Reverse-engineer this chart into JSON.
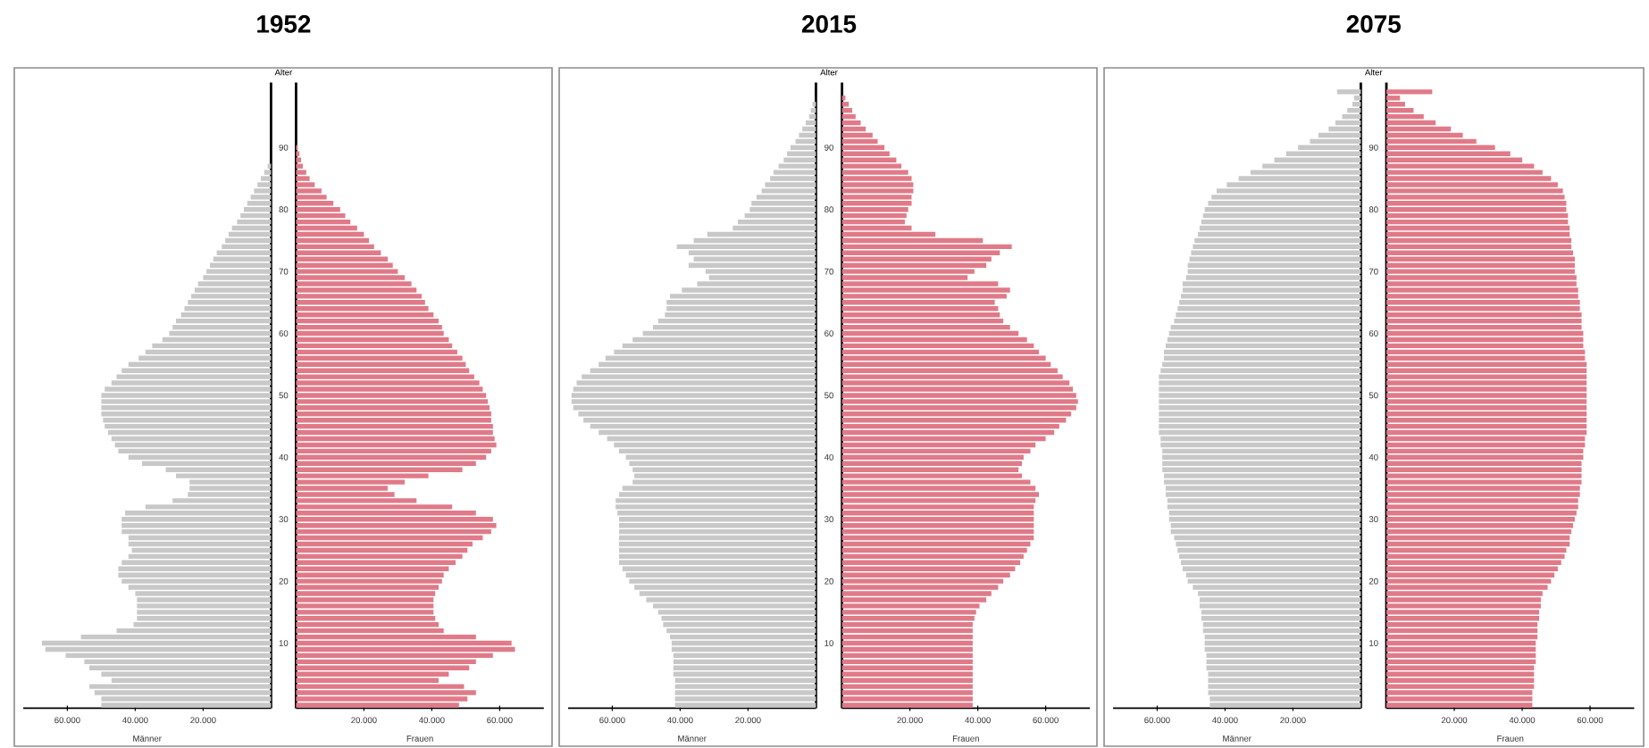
{
  "chart_data": [
    {
      "type": "bar",
      "orientation": "horizontal",
      "title": "1952",
      "ylabel": "Alter",
      "xlabel": "Männer",
      "categories": [
        "90",
        null,
        null,
        null,
        null,
        null,
        null,
        null,
        null,
        null,
        "80",
        null,
        null,
        null,
        null,
        null,
        null,
        null,
        null,
        null,
        "70",
        null,
        null,
        null,
        null,
        null,
        null,
        null,
        null,
        null,
        "60",
        null,
        null,
        null,
        null,
        null,
        null,
        null,
        null,
        null,
        "50",
        null,
        null,
        null,
        null,
        null,
        null,
        null,
        null,
        null,
        "40",
        null,
        null,
        null,
        null,
        null,
        null,
        null,
        null,
        null,
        "30",
        null,
        null,
        null,
        null,
        null,
        null,
        null,
        null,
        null,
        "20",
        null,
        null,
        null,
        null,
        null,
        null,
        null,
        null,
        null,
        "10",
        null,
        null,
        null,
        null,
        null,
        null,
        null,
        null,
        null,
        null
      ],
      "series": [
        {
          "color": "#c8c8c8",
          "values": [
            null,
            null,
            null,
            1000,
            2000,
            3000,
            4000,
            5000,
            6000,
            7000,
            8000,
            9000,
            10000,
            11500,
            12500,
            13500,
            14500,
            16000,
            17000,
            18000,
            19000,
            20000,
            21500,
            22500,
            23500,
            24500,
            25500,
            26500,
            28000,
            29000,
            30000,
            32000,
            35000,
            37000,
            39000,
            42000,
            44000,
            45500,
            47000,
            49000,
            50000,
            50000,
            50000,
            50000,
            49500,
            49000,
            48000,
            47000,
            46000,
            45000,
            42000,
            38000,
            31000,
            28000,
            24000,
            24000,
            24500,
            29000,
            37000,
            43000,
            44000,
            44000,
            44000,
            42000,
            42000,
            41000,
            42000,
            44000,
            45000,
            45000,
            44000,
            42000,
            40000,
            39500,
            39500,
            39500,
            39500,
            40500,
            45500,
            56000,
            67500,
            66500,
            60500,
            55000,
            53500,
            50000,
            47000,
            53500,
            52000,
            50000,
            50000
          ]
        }
      ],
      "xlim": [
        73000,
        0
      ],
      "xticks": [
        {
          "value": 60000,
          "label": "60.000"
        },
        {
          "value": 40000,
          "label": "40.000"
        },
        {
          "value": 20000,
          "label": "20.000"
        }
      ]
    },
    {
      "type": "bar",
      "orientation": "horizontal",
      "xlabel": "Frauen",
      "tick_labels": "x",
      "categories": [
        "90",
        null,
        null,
        null,
        null,
        null,
        null,
        null,
        null,
        null,
        "80",
        null,
        null,
        null,
        null,
        null,
        null,
        null,
        null,
        null,
        "70",
        null,
        null,
        null,
        null,
        null,
        null,
        null,
        null,
        null,
        "60",
        null,
        null,
        null,
        null,
        null,
        null,
        null,
        null,
        null,
        "50",
        null,
        null,
        null,
        null,
        null,
        null,
        null,
        null,
        null,
        "40",
        null,
        null,
        null,
        null,
        null,
        null,
        null,
        null,
        null,
        "30",
        null,
        null,
        null,
        null,
        null,
        null,
        null,
        null,
        null,
        "20",
        null,
        null,
        null,
        null,
        null,
        null,
        null,
        null,
        null,
        "10",
        null,
        null,
        null,
        null,
        null,
        null,
        null,
        null,
        null,
        null
      ],
      "series": [
        {
          "color": "#e07a88",
          "values": [
            500,
            1000,
            1500,
            2000,
            3000,
            4000,
            5500,
            7500,
            9000,
            11000,
            13000,
            14500,
            16000,
            18000,
            20000,
            21500,
            23000,
            25000,
            27000,
            28500,
            30000,
            32000,
            34000,
            35500,
            37000,
            38000,
            39000,
            40500,
            42000,
            43000,
            43500,
            45000,
            46000,
            47500,
            49000,
            50000,
            51000,
            52500,
            54000,
            55000,
            56000,
            56500,
            57000,
            57500,
            57500,
            58000,
            58000,
            58500,
            59000,
            57500,
            56000,
            53000,
            49000,
            39000,
            32000,
            27000,
            29000,
            35500,
            46000,
            53000,
            58000,
            59000,
            57500,
            55000,
            52000,
            50500,
            49000,
            47000,
            45000,
            43500,
            43000,
            42000,
            41000,
            40500,
            40500,
            40500,
            41000,
            42000,
            43500,
            53000,
            63500,
            64500,
            58000,
            53000,
            51000,
            45000,
            42000,
            49500,
            53000,
            50500,
            48000
          ]
        }
      ],
      "xlim": [
        0,
        73000
      ],
      "xticks": [
        {
          "value": 20000,
          "label": "20.000"
        },
        {
          "value": 40000,
          "label": "40.000"
        },
        {
          "value": 60000,
          "label": "60.000"
        }
      ]
    },
    {
      "type": "bar",
      "orientation": "horizontal",
      "title": "2015",
      "ylabel": "Alter",
      "xlabel": "Männer",
      "categories": [
        null,
        null,
        null,
        null,
        null,
        null,
        null,
        null,
        "90",
        null,
        null,
        null,
        null,
        null,
        null,
        null,
        null,
        null,
        "80",
        null,
        null,
        null,
        null,
        null,
        null,
        null,
        null,
        null,
        "70",
        null,
        null,
        null,
        null,
        null,
        null,
        null,
        null,
        null,
        "60",
        null,
        null,
        null,
        null,
        null,
        null,
        null,
        null,
        null,
        "50",
        null,
        null,
        null,
        null,
        null,
        null,
        null,
        null,
        null,
        "40",
        null,
        null,
        null,
        null,
        null,
        null,
        null,
        null,
        null,
        "30",
        null,
        null,
        null,
        null,
        null,
        null,
        null,
        null,
        null,
        "20",
        null,
        null,
        null,
        null,
        null,
        null,
        null,
        null,
        null,
        "10",
        null,
        null,
        null,
        null,
        null,
        null,
        null,
        null,
        null,
        null
      ],
      "series": [
        {
          "color": "#c8c8c8",
          "values": [
            null,
            1000,
            1500,
            2000,
            3000,
            4000,
            5000,
            6000,
            7500,
            8500,
            9500,
            11000,
            12500,
            13500,
            15000,
            16000,
            17500,
            19000,
            19500,
            21000,
            23000,
            24500,
            32000,
            36000,
            41000,
            37500,
            36000,
            37500,
            32500,
            31500,
            35000,
            39500,
            43000,
            44000,
            44000,
            44500,
            46500,
            48000,
            51000,
            54000,
            57000,
            59500,
            62000,
            64000,
            66500,
            69000,
            70500,
            71500,
            72000,
            72000,
            71500,
            70000,
            68500,
            66500,
            64000,
            61500,
            59500,
            58000,
            56000,
            55000,
            54000,
            53500,
            54000,
            57000,
            58000,
            59000,
            59000,
            58500,
            58000,
            58000,
            58000,
            58000,
            58000,
            58000,
            58000,
            58000,
            57000,
            56000,
            55000,
            53500,
            52000,
            50000,
            48000,
            46500,
            45500,
            45000,
            44000,
            43000,
            42500,
            42500,
            42000,
            42000,
            42000,
            42000,
            41500,
            41500,
            41500,
            41500,
            41500
          ]
        }
      ],
      "xlim": [
        73000,
        0
      ],
      "xticks": [
        {
          "value": 60000,
          "label": "60.000"
        },
        {
          "value": 40000,
          "label": "40.000"
        },
        {
          "value": 20000,
          "label": "20.000"
        }
      ]
    },
    {
      "type": "bar",
      "orientation": "horizontal",
      "xlabel": "Frauen",
      "tick_labels": "x",
      "categories": [
        null,
        null,
        null,
        null,
        null,
        null,
        null,
        null,
        "90",
        null,
        null,
        null,
        null,
        null,
        null,
        null,
        null,
        null,
        "80",
        null,
        null,
        null,
        null,
        null,
        null,
        null,
        null,
        null,
        "70",
        null,
        null,
        null,
        null,
        null,
        null,
        null,
        null,
        null,
        "60",
        null,
        null,
        null,
        null,
        null,
        null,
        null,
        null,
        null,
        "50",
        null,
        null,
        null,
        null,
        null,
        null,
        null,
        null,
        null,
        "40",
        null,
        null,
        null,
        null,
        null,
        null,
        null,
        null,
        null,
        "30",
        null,
        null,
        null,
        null,
        null,
        null,
        null,
        null,
        null,
        "20",
        null,
        null,
        null,
        null,
        null,
        null,
        null,
        null,
        null,
        "10",
        null,
        null,
        null,
        null,
        null,
        null,
        null,
        null,
        null,
        null
      ],
      "series": [
        {
          "color": "#e07a88",
          "values": [
            1000,
            2000,
            3000,
            4000,
            5500,
            7000,
            9000,
            10500,
            12500,
            14000,
            16000,
            17500,
            19500,
            20500,
            21000,
            21000,
            20500,
            20500,
            19500,
            19000,
            18500,
            20500,
            27500,
            41500,
            50000,
            46500,
            44000,
            42500,
            39000,
            37000,
            46000,
            49500,
            48500,
            45000,
            46000,
            46500,
            47500,
            49500,
            52000,
            54500,
            56500,
            58000,
            60000,
            61500,
            63500,
            65000,
            67000,
            68000,
            69000,
            69500,
            69000,
            67500,
            66000,
            64000,
            62500,
            60000,
            57000,
            55500,
            53500,
            53000,
            52000,
            53000,
            55500,
            57000,
            58000,
            57000,
            56500,
            56500,
            56500,
            56500,
            56500,
            56500,
            55500,
            54500,
            53500,
            52500,
            51000,
            49500,
            47500,
            46000,
            44000,
            42500,
            40500,
            39500,
            39000,
            38500,
            38500,
            38500,
            38500,
            38500,
            38500,
            38500,
            38500,
            38500,
            38500,
            38500,
            38500,
            38500,
            38500
          ]
        }
      ],
      "xlim": [
        0,
        73000
      ],
      "xticks": [
        {
          "value": 20000,
          "label": "20.000"
        },
        {
          "value": 40000,
          "label": "40.000"
        },
        {
          "value": 60000,
          "label": "60.000"
        }
      ]
    },
    {
      "type": "bar",
      "orientation": "horizontal",
      "title": "2075",
      "ylabel": "Alter",
      "xlabel": "Männer",
      "categories": [
        null,
        null,
        null,
        null,
        null,
        null,
        null,
        null,
        null,
        "90",
        null,
        null,
        null,
        null,
        null,
        null,
        null,
        null,
        null,
        "80",
        null,
        null,
        null,
        null,
        null,
        null,
        null,
        null,
        null,
        "70",
        null,
        null,
        null,
        null,
        null,
        null,
        null,
        null,
        null,
        "60",
        null,
        null,
        null,
        null,
        null,
        null,
        null,
        null,
        null,
        "50",
        null,
        null,
        null,
        null,
        null,
        null,
        null,
        null,
        null,
        "40",
        null,
        null,
        null,
        null,
        null,
        null,
        null,
        null,
        null,
        "30",
        null,
        null,
        null,
        null,
        null,
        null,
        null,
        null,
        null,
        "20",
        null,
        null,
        null,
        null,
        null,
        null,
        null,
        null,
        null,
        "10",
        null,
        null,
        null,
        null,
        null,
        null,
        null,
        null,
        null,
        null
      ],
      "series": [
        {
          "color": "#c8c8c8",
          "values": [
            7000,
            2000,
            2500,
            4000,
            5500,
            7500,
            9500,
            12500,
            15000,
            18500,
            22000,
            25500,
            29000,
            32500,
            36000,
            39500,
            42500,
            44000,
            45000,
            46000,
            46500,
            47000,
            47500,
            48000,
            49000,
            49500,
            50000,
            50500,
            51000,
            51000,
            51500,
            52500,
            52500,
            53000,
            53500,
            54000,
            54500,
            55000,
            56000,
            56500,
            57000,
            57500,
            58000,
            58000,
            58500,
            59000,
            59500,
            59500,
            59500,
            59500,
            59500,
            59500,
            59500,
            59500,
            59500,
            59500,
            59000,
            59000,
            58500,
            58500,
            58500,
            58500,
            58000,
            58000,
            57500,
            57500,
            57000,
            57000,
            56500,
            56500,
            56000,
            56000,
            55000,
            54500,
            54000,
            53500,
            53000,
            52500,
            51500,
            51000,
            49500,
            48000,
            47500,
            47500,
            47000,
            47000,
            46500,
            46500,
            46000,
            46000,
            46000,
            45500,
            45500,
            45500,
            45000,
            45000,
            45000,
            45000,
            44500,
            44500
          ]
        }
      ],
      "xlim": [
        73000,
        0
      ],
      "xticks": [
        {
          "value": 60000,
          "label": "60.000"
        },
        {
          "value": 40000,
          "label": "40.000"
        },
        {
          "value": 20000,
          "label": "20.000"
        }
      ]
    },
    {
      "type": "bar",
      "orientation": "horizontal",
      "xlabel": "Frauen",
      "tick_labels": "x",
      "categories": [
        null,
        null,
        null,
        null,
        null,
        null,
        null,
        null,
        null,
        "90",
        null,
        null,
        null,
        null,
        null,
        null,
        null,
        null,
        null,
        "80",
        null,
        null,
        null,
        null,
        null,
        null,
        null,
        null,
        null,
        "70",
        null,
        null,
        null,
        null,
        null,
        null,
        null,
        null,
        null,
        "60",
        null,
        null,
        null,
        null,
        null,
        null,
        null,
        null,
        null,
        "50",
        null,
        null,
        null,
        null,
        null,
        null,
        null,
        null,
        null,
        "40",
        null,
        null,
        null,
        null,
        null,
        null,
        null,
        null,
        null,
        "30",
        null,
        null,
        null,
        null,
        null,
        null,
        null,
        null,
        null,
        "20",
        null,
        null,
        null,
        null,
        null,
        null,
        null,
        null,
        null,
        "10",
        null,
        null,
        null,
        null,
        null,
        null,
        null,
        null,
        null,
        null
      ],
      "series": [
        {
          "color": "#e07a88",
          "values": [
            13500,
            4000,
            5500,
            8000,
            11000,
            14500,
            19000,
            22500,
            26500,
            32000,
            36500,
            40000,
            43500,
            46000,
            48500,
            50500,
            52000,
            52500,
            53000,
            53000,
            53500,
            53500,
            54000,
            54000,
            54500,
            54500,
            55000,
            55500,
            55500,
            55500,
            56000,
            56000,
            56500,
            56500,
            57000,
            57000,
            57500,
            57500,
            57500,
            58000,
            58000,
            58000,
            58500,
            58500,
            59000,
            59000,
            59000,
            59000,
            59000,
            59000,
            59000,
            59000,
            59000,
            59000,
            59000,
            59000,
            58500,
            58500,
            58000,
            58000,
            57500,
            57500,
            57500,
            57500,
            57000,
            57000,
            56500,
            56500,
            56000,
            55500,
            55000,
            54500,
            54000,
            54000,
            53000,
            52500,
            51500,
            50500,
            49500,
            48500,
            47500,
            46000,
            45500,
            45500,
            45000,
            45000,
            44500,
            44500,
            44500,
            44000,
            44000,
            44000,
            44000,
            43500,
            43500,
            43500,
            43500,
            43000,
            43000,
            43000
          ]
        }
      ],
      "xlim": [
        0,
        73000
      ],
      "xticks": [
        {
          "value": 20000,
          "label": "20.000"
        },
        {
          "value": 40000,
          "label": "40.000"
        },
        {
          "value": 60000,
          "label": "60.000"
        }
      ]
    }
  ]
}
